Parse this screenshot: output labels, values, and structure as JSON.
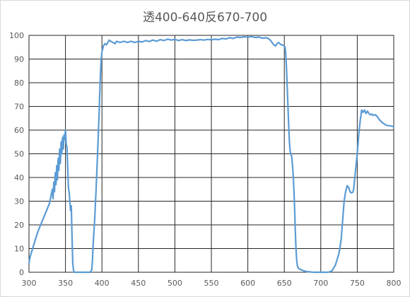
{
  "chart_data": {
    "type": "line",
    "title": "透400-640反670-700",
    "xlabel": "",
    "ylabel": "",
    "xlim": [
      300,
      800
    ],
    "ylim": [
      0,
      100
    ],
    "x_ticks": [
      300,
      350,
      400,
      450,
      500,
      550,
      600,
      650,
      700,
      750,
      800
    ],
    "y_ticks": [
      0,
      10,
      20,
      30,
      40,
      50,
      60,
      70,
      80,
      90,
      100
    ],
    "grid": true,
    "legend": "none",
    "line_color": "#5b9bd5",
    "series": [
      {
        "x": [
          300,
          302,
          305,
          308,
          312,
          316,
          320,
          324,
          328,
          330,
          332,
          333,
          334,
          335,
          336,
          337,
          338,
          339,
          340,
          341,
          342,
          343,
          344,
          345,
          346,
          347,
          348,
          349,
          350,
          351,
          352,
          353,
          354,
          355,
          356,
          357,
          358,
          359,
          360,
          361,
          362,
          364,
          366,
          370,
          375,
          380,
          384,
          386,
          387,
          388,
          390,
          392,
          394,
          395,
          396,
          397,
          398,
          399,
          400,
          402,
          404,
          406,
          408,
          410,
          412,
          415,
          418,
          420,
          425,
          430,
          435,
          440,
          445,
          450,
          455,
          460,
          465,
          470,
          475,
          480,
          485,
          490,
          495,
          500,
          505,
          510,
          515,
          520,
          525,
          530,
          535,
          540,
          545,
          550,
          555,
          560,
          565,
          570,
          575,
          580,
          585,
          590,
          595,
          600,
          605,
          610,
          615,
          620,
          625,
          628,
          630,
          632,
          635,
          638,
          640,
          642,
          645,
          648,
          650,
          651,
          652,
          653,
          654,
          655,
          656,
          657,
          658,
          659,
          660,
          661,
          662,
          663,
          664,
          665,
          666,
          667,
          668,
          670,
          675,
          680,
          690,
          700,
          710,
          715,
          720,
          725,
          728,
          730,
          732,
          734,
          735,
          736,
          738,
          740,
          742,
          744,
          745,
          746,
          748,
          750,
          752,
          754,
          755,
          756,
          758,
          760,
          762,
          764,
          766,
          768,
          770,
          772,
          775,
          778,
          780,
          785,
          790,
          795,
          800
        ],
        "values": [
          4,
          7,
          10,
          13,
          17,
          20,
          23,
          26,
          29,
          32,
          35,
          31,
          38,
          34,
          42,
          37,
          45,
          39,
          48,
          43,
          52,
          46,
          55,
          50,
          57,
          52,
          58,
          56,
          60,
          54,
          53,
          45,
          36,
          34,
          30,
          26,
          28,
          15,
          4,
          1,
          0,
          0,
          0,
          0,
          0,
          0,
          0,
          1,
          5,
          12,
          22,
          35,
          50,
          58,
          66,
          75,
          84,
          90,
          93,
          95.5,
          96.5,
          96,
          97,
          98,
          97.5,
          97,
          96.5,
          97.5,
          97,
          97.5,
          97,
          97.5,
          97,
          97.5,
          97.2,
          97.8,
          97.4,
          98,
          97.5,
          98.2,
          97.8,
          98.4,
          98,
          98.3,
          97.8,
          98.2,
          97.8,
          98.1,
          97.9,
          98,
          98.2,
          98,
          98.3,
          98.1,
          98.4,
          98.2,
          98.7,
          98.5,
          99,
          98.7,
          99.3,
          99.1,
          99.4,
          99.2,
          99.5,
          99.1,
          99.3,
          98.8,
          99,
          98.7,
          98.2,
          97.5,
          96.2,
          95.5,
          96.5,
          97,
          96.2,
          95.8,
          95.5,
          95,
          92,
          86,
          78,
          70,
          62,
          55,
          51,
          50,
          49,
          46,
          42,
          36,
          28,
          18,
          10,
          5,
          2.5,
          1.5,
          0.8,
          0.3,
          0,
          0,
          0,
          0.5,
          3,
          8,
          14,
          22,
          30,
          34,
          35,
          36.5,
          36,
          34,
          33.5,
          33.8,
          35,
          38,
          44,
          50,
          58,
          64,
          66,
          68.5,
          67.5,
          68.5,
          67,
          68,
          67,
          66.5,
          66.8,
          66.2,
          66.5,
          65.5,
          64.5,
          63,
          62,
          61.8,
          61.5
        ]
      }
    ]
  }
}
